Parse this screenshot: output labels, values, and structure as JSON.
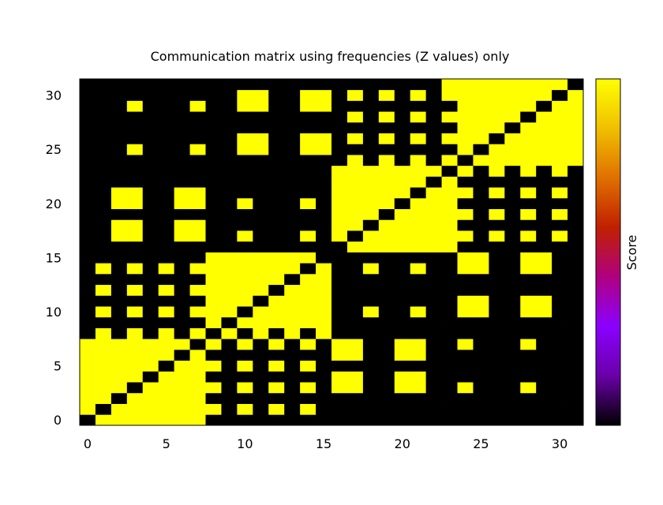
{
  "chart_data": {
    "type": "heatmap",
    "title": "Communication matrix using frequencies (Z values) only",
    "xlabel": "",
    "ylabel": "",
    "colorbar_label": "Score",
    "xlim": [
      -0.5,
      31.5
    ],
    "ylim": [
      -0.5,
      31.5
    ],
    "x_ticks": [
      0,
      5,
      10,
      15,
      20,
      25,
      30
    ],
    "y_ticks": [
      0,
      5,
      10,
      15,
      20,
      25,
      30
    ],
    "grid": false,
    "colorbar_colors": [
      "#000000",
      "#6a00a8",
      "#8b00ff",
      "#b00080",
      "#c02000",
      "#e07000",
      "#f0c000",
      "#ffff00"
    ],
    "cell_colors": {
      "low": "#000000",
      "high": "#ffff00"
    },
    "value_description": "rows are y from 0 to 31; each string lists x from 0 to 31; 1 = high score (yellow), 0 = low (black)",
    "rows": [
      "01111111000000000000000000000000",
      "10111111101010100000000000000000",
      "11011111000000000000000000000000",
      "11101111101010101100110010001000",
      "11110111000000001100110000000000",
      "11111011101010100000000000000000",
      "11111101000000001100110000000000",
      "11111110101010101100110010001000",
      "01010101010101010000000000000000",
      "00000000101111110000000000000000",
      "01010101110111110010010011001100",
      "00000000111011110000000011001100",
      "01010101111101110000000000000000",
      "00000000111110110000000000000000",
      "01010101111111010010010011001100",
      "00000000111111100000000011001100",
      "00000000000000000111111100000000",
      "00110011001000101011111110101010",
      "00110011000000001101111100000000",
      "00000000000000001110111110101010",
      "00110011001000101111011100000000",
      "00110011000000001111101110101010",
      "00000000000000001111110100000000",
      "00000000000000001111111010101010",
      "00000000000000000101010101111111",
      "00010001001100110000000010111111",
      "00000000001100110101010111011111",
      "00000000000000000000000011101111",
      "00000000000000000101010111110111",
      "00010001001100110000000011111011",
      "00000000001100110101010111111101",
      "00000000000000000000000111111110"
    ]
  }
}
